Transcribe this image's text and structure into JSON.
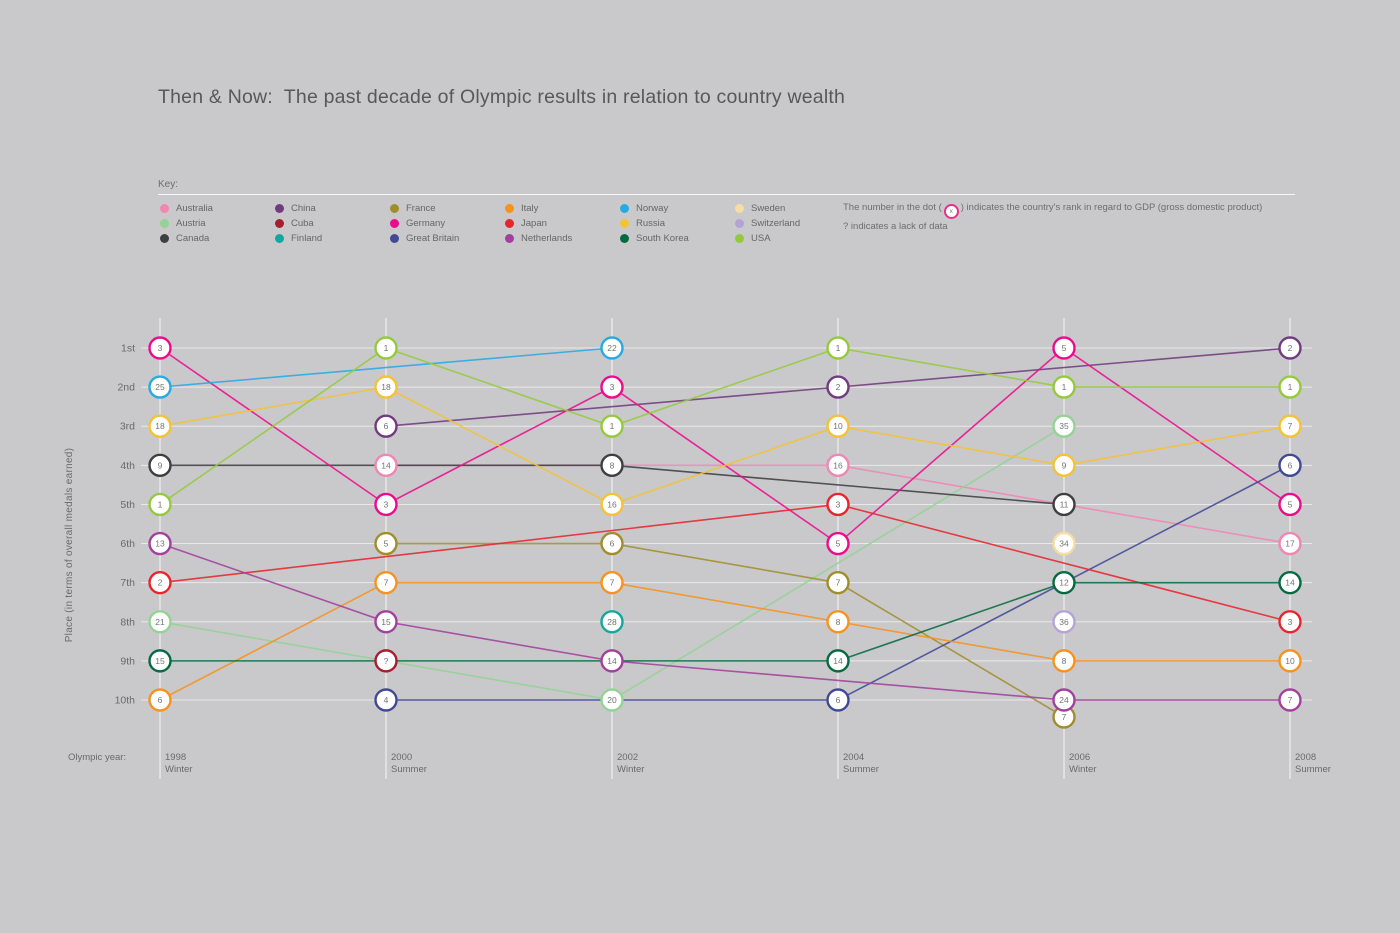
{
  "title": "Then & Now:  The past decade of Olympic results in relation to country wealth",
  "key": {
    "label": "Key:",
    "entries": [
      {
        "name": "Australia",
        "color": "#ef87b1"
      },
      {
        "name": "Austria",
        "color": "#93d394"
      },
      {
        "name": "Canada",
        "color": "#3f3f41"
      },
      {
        "name": "China",
        "color": "#713b80"
      },
      {
        "name": "Cuba",
        "color": "#a61e2f"
      },
      {
        "name": "Finland",
        "color": "#12a79f"
      },
      {
        "name": "France",
        "color": "#a08e2c"
      },
      {
        "name": "Germany",
        "color": "#ec0b8d"
      },
      {
        "name": "Great Britain",
        "color": "#414996"
      },
      {
        "name": "Italy",
        "color": "#f6921e"
      },
      {
        "name": "Japan",
        "color": "#e8242d"
      },
      {
        "name": "Netherlands",
        "color": "#a2409c"
      },
      {
        "name": "Norway",
        "color": "#27aae1"
      },
      {
        "name": "Russia",
        "color": "#f3c235"
      },
      {
        "name": "South Korea",
        "color": "#066a41"
      },
      {
        "name": "Sweden",
        "color": "#f8dda2"
      },
      {
        "name": "Switzerland",
        "color": "#b4a3d4"
      },
      {
        "name": "USA",
        "color": "#95c93d"
      }
    ],
    "note_dot_pre": "The number in the dot (",
    "note_dot_symbol": "x",
    "note_dot_post": ") indicates the country's rank in regard to GDP (gross domestic product)",
    "note_line2": "? indicates a lack of data"
  },
  "chart_data": {
    "type": "line",
    "subtype": "bump-chart",
    "xlabel": "Olympic year:",
    "ylabel": "Place  (in terms of overall medals earned)",
    "x_ticks": [
      {
        "year": "1998",
        "season": "Winter"
      },
      {
        "year": "2000",
        "season": "Summer"
      },
      {
        "year": "2002",
        "season": "Winter"
      },
      {
        "year": "2004",
        "season": "Summer"
      },
      {
        "year": "2006",
        "season": "Winter"
      },
      {
        "year": "2008",
        "season": "Summer"
      }
    ],
    "y_ticks": [
      "1st",
      "2nd",
      "3rd",
      "4th",
      "5th",
      "6th",
      "7th",
      "8th",
      "9th",
      "10th"
    ],
    "grid": true,
    "legend_position": "top",
    "point_note": "points are [x_tick_index, place_rank, gdp_rank_label, optional_y_offset_px]",
    "series": [
      {
        "name": "Australia",
        "color": "#ef87b1",
        "points": [
          [
            1,
            4,
            "14"
          ],
          [
            3,
            4,
            "16"
          ],
          [
            5,
            6,
            "17"
          ]
        ]
      },
      {
        "name": "Austria",
        "color": "#93d394",
        "points": [
          [
            0,
            8,
            "21"
          ],
          [
            2,
            10,
            "20"
          ],
          [
            4,
            3,
            "35"
          ]
        ]
      },
      {
        "name": "Canada",
        "color": "#3f3f41",
        "points": [
          [
            0,
            4,
            "9"
          ],
          [
            2,
            4,
            "8"
          ],
          [
            4,
            5,
            "11"
          ]
        ]
      },
      {
        "name": "China",
        "color": "#713b80",
        "points": [
          [
            1,
            3,
            "6"
          ],
          [
            3,
            2,
            "2"
          ],
          [
            5,
            1,
            "2"
          ]
        ]
      },
      {
        "name": "Cuba",
        "color": "#a61e2f",
        "points": [
          [
            1,
            9,
            "?"
          ]
        ]
      },
      {
        "name": "Finland",
        "color": "#12a79f",
        "points": [
          [
            2,
            8,
            "28"
          ]
        ]
      },
      {
        "name": "France",
        "color": "#a08e2c",
        "points": [
          [
            1,
            6,
            "5"
          ],
          [
            2,
            6,
            "6"
          ],
          [
            3,
            7,
            "7"
          ],
          [
            4,
            10,
            "7",
            17
          ]
        ]
      },
      {
        "name": "Germany",
        "color": "#ec0b8d",
        "points": [
          [
            0,
            1,
            "3"
          ],
          [
            1,
            5,
            "3"
          ],
          [
            2,
            2,
            "3"
          ],
          [
            3,
            6,
            "5"
          ],
          [
            4,
            1,
            "5"
          ],
          [
            5,
            5,
            "5"
          ]
        ]
      },
      {
        "name": "Great Britain",
        "color": "#414996",
        "points": [
          [
            1,
            10,
            "4"
          ],
          [
            3,
            10,
            "6"
          ],
          [
            5,
            4,
            "6"
          ]
        ]
      },
      {
        "name": "Italy",
        "color": "#f6921e",
        "points": [
          [
            0,
            10,
            "6"
          ],
          [
            1,
            7,
            "7"
          ],
          [
            2,
            7,
            "7"
          ],
          [
            3,
            8,
            "8"
          ],
          [
            4,
            9,
            "8"
          ],
          [
            5,
            9,
            "10"
          ]
        ]
      },
      {
        "name": "Japan",
        "color": "#e8242d",
        "points": [
          [
            0,
            7,
            "2"
          ],
          [
            3,
            5,
            "3"
          ],
          [
            5,
            8,
            "3"
          ]
        ]
      },
      {
        "name": "Netherlands",
        "color": "#a2409c",
        "points": [
          [
            0,
            6,
            "13"
          ],
          [
            1,
            8,
            "15"
          ],
          [
            2,
            9,
            "14"
          ],
          [
            4,
            10,
            "24"
          ],
          [
            5,
            10,
            "7"
          ]
        ]
      },
      {
        "name": "Norway",
        "color": "#27aae1",
        "points": [
          [
            0,
            2,
            "25"
          ],
          [
            2,
            1,
            "22"
          ]
        ]
      },
      {
        "name": "Russia",
        "color": "#f3c235",
        "points": [
          [
            0,
            3,
            "18"
          ],
          [
            1,
            2,
            "18"
          ],
          [
            2,
            5,
            "16"
          ],
          [
            3,
            3,
            "10"
          ],
          [
            4,
            4,
            "9"
          ],
          [
            5,
            3,
            "7"
          ]
        ]
      },
      {
        "name": "South Korea",
        "color": "#066a41",
        "points": [
          [
            0,
            9,
            "15"
          ],
          [
            3,
            9,
            "14"
          ],
          [
            4,
            7,
            "12"
          ],
          [
            5,
            7,
            "14"
          ]
        ]
      },
      {
        "name": "Sweden",
        "color": "#f8dda2",
        "points": [
          [
            4,
            6,
            "34"
          ]
        ]
      },
      {
        "name": "Switzerland",
        "color": "#b4a3d4",
        "points": [
          [
            4,
            8,
            "36"
          ]
        ]
      },
      {
        "name": "USA",
        "color": "#95c93d",
        "points": [
          [
            0,
            5,
            "1"
          ],
          [
            1,
            1,
            "1"
          ],
          [
            2,
            3,
            "1"
          ],
          [
            3,
            1,
            "1"
          ],
          [
            4,
            2,
            "1"
          ],
          [
            5,
            2,
            "1"
          ]
        ]
      }
    ]
  }
}
